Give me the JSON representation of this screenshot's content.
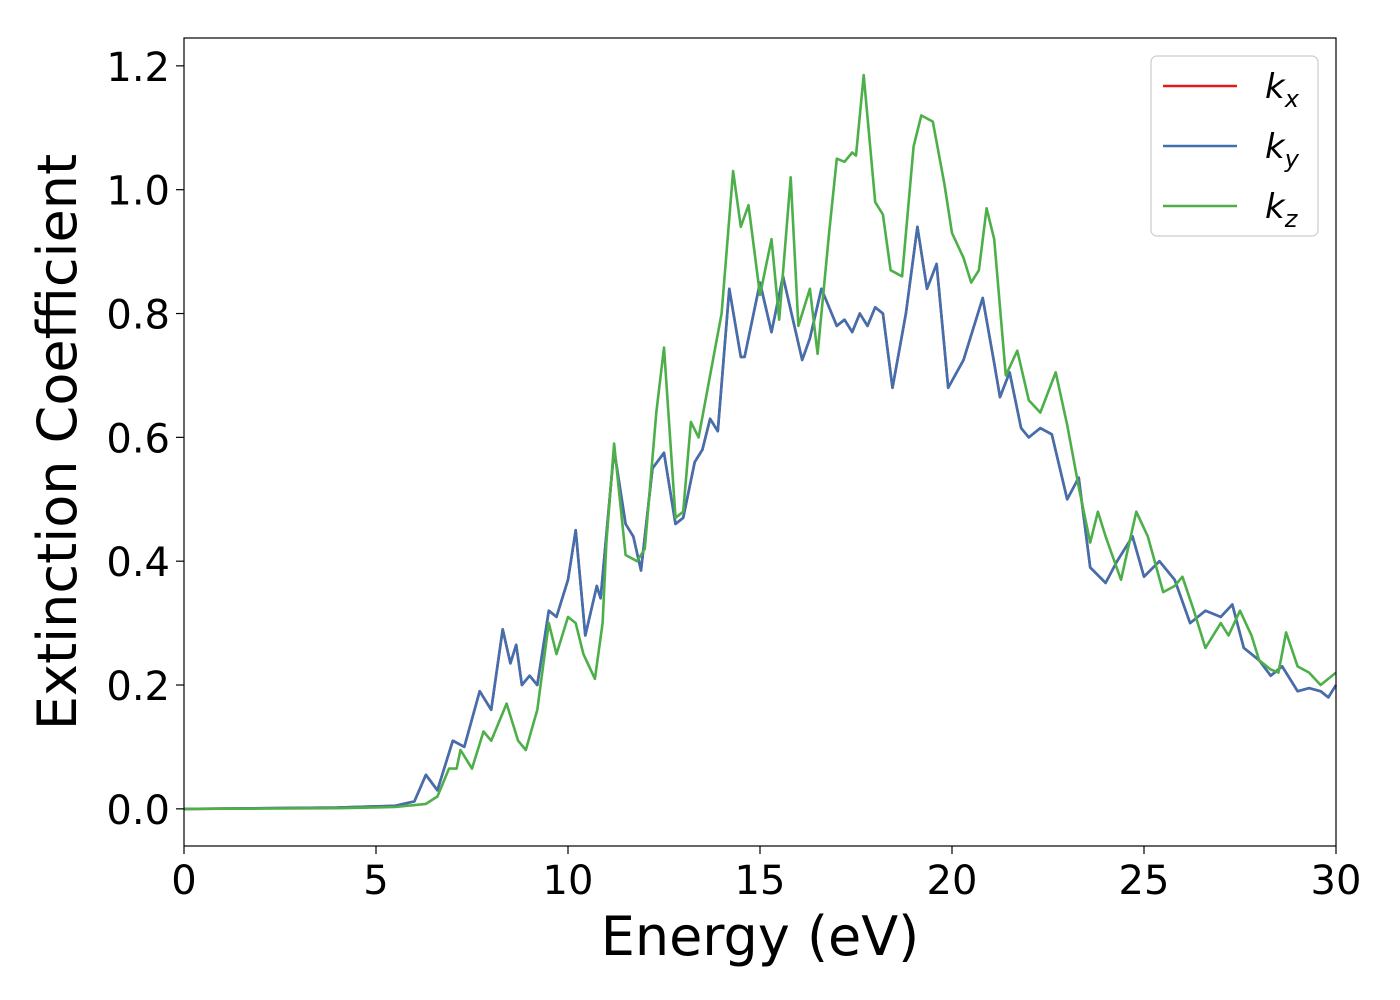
{
  "chart_data": {
    "type": "line",
    "xlabel": "Energy (eV)",
    "ylabel": "Extinction Coefficient",
    "xlim": [
      0,
      30
    ],
    "ylim": [
      -0.06,
      1.245
    ],
    "xticks": [
      0,
      5,
      10,
      15,
      20,
      25,
      30
    ],
    "xtick_labels": [
      "0",
      "5",
      "10",
      "15",
      "20",
      "25",
      "30"
    ],
    "yticks": [
      0.0,
      0.2,
      0.4,
      0.6,
      0.8,
      1.0,
      1.2
    ],
    "ytick_labels": [
      "0.0",
      "0.2",
      "0.4",
      "0.6",
      "0.8",
      "1.0",
      "1.2"
    ],
    "grid": false,
    "legend_position": "top-right",
    "series": [
      {
        "name": "k",
        "subscript": "x",
        "color": "#e41a1c",
        "points": [
          [
            0,
            0
          ],
          [
            4,
            0.002
          ],
          [
            5.5,
            0.005
          ],
          [
            6,
            0.012
          ],
          [
            6.3,
            0.055
          ],
          [
            6.6,
            0.03
          ],
          [
            7,
            0.11
          ],
          [
            7.3,
            0.1
          ],
          [
            7.7,
            0.19
          ],
          [
            8,
            0.16
          ],
          [
            8.3,
            0.29
          ],
          [
            8.5,
            0.235
          ],
          [
            8.65,
            0.265
          ],
          [
            8.8,
            0.2
          ],
          [
            9,
            0.215
          ],
          [
            9.2,
            0.2
          ],
          [
            9.5,
            0.32
          ],
          [
            9.7,
            0.31
          ],
          [
            10,
            0.37
          ],
          [
            10.2,
            0.45
          ],
          [
            10.45,
            0.28
          ],
          [
            10.75,
            0.36
          ],
          [
            10.85,
            0.34
          ],
          [
            11.2,
            0.58
          ],
          [
            11.5,
            0.46
          ],
          [
            11.7,
            0.44
          ],
          [
            11.9,
            0.385
          ],
          [
            12.2,
            0.55
          ],
          [
            12.5,
            0.575
          ],
          [
            12.8,
            0.46
          ],
          [
            13,
            0.47
          ],
          [
            13.3,
            0.56
          ],
          [
            13.5,
            0.58
          ],
          [
            13.7,
            0.63
          ],
          [
            13.9,
            0.61
          ],
          [
            14.2,
            0.84
          ],
          [
            14.5,
            0.73
          ],
          [
            14.6,
            0.73
          ],
          [
            15,
            0.85
          ],
          [
            15.3,
            0.77
          ],
          [
            15.6,
            0.86
          ],
          [
            16.1,
            0.725
          ],
          [
            16.3,
            0.76
          ],
          [
            16.6,
            0.84
          ],
          [
            17,
            0.78
          ],
          [
            17.2,
            0.79
          ],
          [
            17.4,
            0.77
          ],
          [
            17.6,
            0.8
          ],
          [
            17.8,
            0.78
          ],
          [
            18,
            0.81
          ],
          [
            18.2,
            0.8
          ],
          [
            18.45,
            0.68
          ],
          [
            18.8,
            0.8
          ],
          [
            19.1,
            0.94
          ],
          [
            19.35,
            0.84
          ],
          [
            19.6,
            0.88
          ],
          [
            19.9,
            0.68
          ],
          [
            20.3,
            0.725
          ],
          [
            20.8,
            0.825
          ],
          [
            21.1,
            0.72
          ],
          [
            21.25,
            0.665
          ],
          [
            21.5,
            0.705
          ],
          [
            21.8,
            0.615
          ],
          [
            22,
            0.6
          ],
          [
            22.3,
            0.615
          ],
          [
            22.6,
            0.605
          ],
          [
            23,
            0.5
          ],
          [
            23.3,
            0.535
          ],
          [
            23.6,
            0.39
          ],
          [
            24,
            0.365
          ],
          [
            24.3,
            0.4
          ],
          [
            24.7,
            0.44
          ],
          [
            25,
            0.375
          ],
          [
            25.4,
            0.4
          ],
          [
            25.8,
            0.37
          ],
          [
            26.2,
            0.3
          ],
          [
            26.6,
            0.32
          ],
          [
            27,
            0.31
          ],
          [
            27.3,
            0.33
          ],
          [
            27.6,
            0.26
          ],
          [
            28,
            0.24
          ],
          [
            28.3,
            0.215
          ],
          [
            28.6,
            0.23
          ],
          [
            29,
            0.19
          ],
          [
            29.3,
            0.195
          ],
          [
            29.6,
            0.19
          ],
          [
            29.8,
            0.18
          ],
          [
            30,
            0.2
          ]
        ]
      },
      {
        "name": "k",
        "subscript": "y",
        "color": "#4070b0",
        "points": [
          [
            0,
            0
          ],
          [
            4,
            0.002
          ],
          [
            5.5,
            0.005
          ],
          [
            6,
            0.012
          ],
          [
            6.3,
            0.055
          ],
          [
            6.6,
            0.03
          ],
          [
            7,
            0.11
          ],
          [
            7.3,
            0.1
          ],
          [
            7.7,
            0.19
          ],
          [
            8,
            0.16
          ],
          [
            8.3,
            0.29
          ],
          [
            8.5,
            0.235
          ],
          [
            8.65,
            0.265
          ],
          [
            8.8,
            0.2
          ],
          [
            9,
            0.215
          ],
          [
            9.2,
            0.2
          ],
          [
            9.5,
            0.32
          ],
          [
            9.7,
            0.31
          ],
          [
            10,
            0.37
          ],
          [
            10.2,
            0.45
          ],
          [
            10.45,
            0.28
          ],
          [
            10.75,
            0.36
          ],
          [
            10.85,
            0.34
          ],
          [
            11.2,
            0.58
          ],
          [
            11.5,
            0.46
          ],
          [
            11.7,
            0.44
          ],
          [
            11.9,
            0.385
          ],
          [
            12.2,
            0.55
          ],
          [
            12.5,
            0.575
          ],
          [
            12.8,
            0.46
          ],
          [
            13,
            0.47
          ],
          [
            13.3,
            0.56
          ],
          [
            13.5,
            0.58
          ],
          [
            13.7,
            0.63
          ],
          [
            13.9,
            0.61
          ],
          [
            14.2,
            0.84
          ],
          [
            14.5,
            0.73
          ],
          [
            14.6,
            0.73
          ],
          [
            15,
            0.85
          ],
          [
            15.3,
            0.77
          ],
          [
            15.6,
            0.86
          ],
          [
            16.1,
            0.725
          ],
          [
            16.3,
            0.76
          ],
          [
            16.6,
            0.84
          ],
          [
            17,
            0.78
          ],
          [
            17.2,
            0.79
          ],
          [
            17.4,
            0.77
          ],
          [
            17.6,
            0.8
          ],
          [
            17.8,
            0.78
          ],
          [
            18,
            0.81
          ],
          [
            18.2,
            0.8
          ],
          [
            18.45,
            0.68
          ],
          [
            18.8,
            0.8
          ],
          [
            19.1,
            0.94
          ],
          [
            19.35,
            0.84
          ],
          [
            19.6,
            0.88
          ],
          [
            19.9,
            0.68
          ],
          [
            20.3,
            0.725
          ],
          [
            20.8,
            0.825
          ],
          [
            21.1,
            0.72
          ],
          [
            21.25,
            0.665
          ],
          [
            21.5,
            0.705
          ],
          [
            21.8,
            0.615
          ],
          [
            22,
            0.6
          ],
          [
            22.3,
            0.615
          ],
          [
            22.6,
            0.605
          ],
          [
            23,
            0.5
          ],
          [
            23.3,
            0.535
          ],
          [
            23.6,
            0.39
          ],
          [
            24,
            0.365
          ],
          [
            24.3,
            0.4
          ],
          [
            24.7,
            0.44
          ],
          [
            25,
            0.375
          ],
          [
            25.4,
            0.4
          ],
          [
            25.8,
            0.37
          ],
          [
            26.2,
            0.3
          ],
          [
            26.6,
            0.32
          ],
          [
            27,
            0.31
          ],
          [
            27.3,
            0.33
          ],
          [
            27.6,
            0.26
          ],
          [
            28,
            0.24
          ],
          [
            28.3,
            0.215
          ],
          [
            28.6,
            0.23
          ],
          [
            29,
            0.19
          ],
          [
            29.3,
            0.195
          ],
          [
            29.6,
            0.19
          ],
          [
            29.8,
            0.18
          ],
          [
            30,
            0.2
          ]
        ]
      },
      {
        "name": "k",
        "subscript": "z",
        "color": "#4daf4a",
        "points": [
          [
            0,
            0
          ],
          [
            4,
            0.001
          ],
          [
            5.5,
            0.003
          ],
          [
            6.3,
            0.008
          ],
          [
            6.6,
            0.02
          ],
          [
            6.9,
            0.065
          ],
          [
            7.1,
            0.065
          ],
          [
            7.2,
            0.095
          ],
          [
            7.5,
            0.065
          ],
          [
            7.8,
            0.125
          ],
          [
            8,
            0.11
          ],
          [
            8.4,
            0.17
          ],
          [
            8.7,
            0.11
          ],
          [
            8.9,
            0.095
          ],
          [
            9.2,
            0.16
          ],
          [
            9.5,
            0.3
          ],
          [
            9.7,
            0.25
          ],
          [
            10,
            0.31
          ],
          [
            10.2,
            0.3
          ],
          [
            10.4,
            0.25
          ],
          [
            10.7,
            0.21
          ],
          [
            10.9,
            0.3
          ],
          [
            11,
            0.43
          ],
          [
            11.2,
            0.59
          ],
          [
            11.5,
            0.41
          ],
          [
            11.8,
            0.4
          ],
          [
            12,
            0.42
          ],
          [
            12.3,
            0.64
          ],
          [
            12.5,
            0.745
          ],
          [
            12.8,
            0.47
          ],
          [
            13,
            0.48
          ],
          [
            13.2,
            0.625
          ],
          [
            13.4,
            0.6
          ],
          [
            13.7,
            0.7
          ],
          [
            14,
            0.8
          ],
          [
            14.3,
            1.03
          ],
          [
            14.5,
            0.94
          ],
          [
            14.7,
            0.975
          ],
          [
            15,
            0.83
          ],
          [
            15.3,
            0.92
          ],
          [
            15.5,
            0.79
          ],
          [
            15.8,
            1.02
          ],
          [
            16,
            0.78
          ],
          [
            16.3,
            0.84
          ],
          [
            16.5,
            0.735
          ],
          [
            16.8,
            0.93
          ],
          [
            17,
            1.05
          ],
          [
            17.2,
            1.045
          ],
          [
            17.4,
            1.06
          ],
          [
            17.5,
            1.055
          ],
          [
            17.7,
            1.185
          ],
          [
            18,
            0.98
          ],
          [
            18.2,
            0.96
          ],
          [
            18.4,
            0.87
          ],
          [
            18.7,
            0.86
          ],
          [
            19,
            1.07
          ],
          [
            19.2,
            1.12
          ],
          [
            19.5,
            1.11
          ],
          [
            19.8,
            1.01
          ],
          [
            20,
            0.93
          ],
          [
            20.3,
            0.89
          ],
          [
            20.5,
            0.85
          ],
          [
            20.7,
            0.87
          ],
          [
            20.9,
            0.97
          ],
          [
            21.1,
            0.92
          ],
          [
            21.4,
            0.7
          ],
          [
            21.7,
            0.74
          ],
          [
            22,
            0.66
          ],
          [
            22.3,
            0.64
          ],
          [
            22.7,
            0.705
          ],
          [
            23,
            0.62
          ],
          [
            23.3,
            0.52
          ],
          [
            23.6,
            0.43
          ],
          [
            23.8,
            0.48
          ],
          [
            24,
            0.44
          ],
          [
            24.4,
            0.37
          ],
          [
            24.8,
            0.48
          ],
          [
            25.1,
            0.44
          ],
          [
            25.5,
            0.35
          ],
          [
            25.8,
            0.36
          ],
          [
            26,
            0.375
          ],
          [
            26.3,
            0.32
          ],
          [
            26.6,
            0.26
          ],
          [
            27,
            0.3
          ],
          [
            27.2,
            0.28
          ],
          [
            27.5,
            0.32
          ],
          [
            27.8,
            0.28
          ],
          [
            28,
            0.24
          ],
          [
            28.3,
            0.225
          ],
          [
            28.5,
            0.22
          ],
          [
            28.7,
            0.285
          ],
          [
            29,
            0.23
          ],
          [
            29.3,
            0.22
          ],
          [
            29.6,
            0.2
          ],
          [
            30,
            0.22
          ]
        ]
      }
    ]
  }
}
